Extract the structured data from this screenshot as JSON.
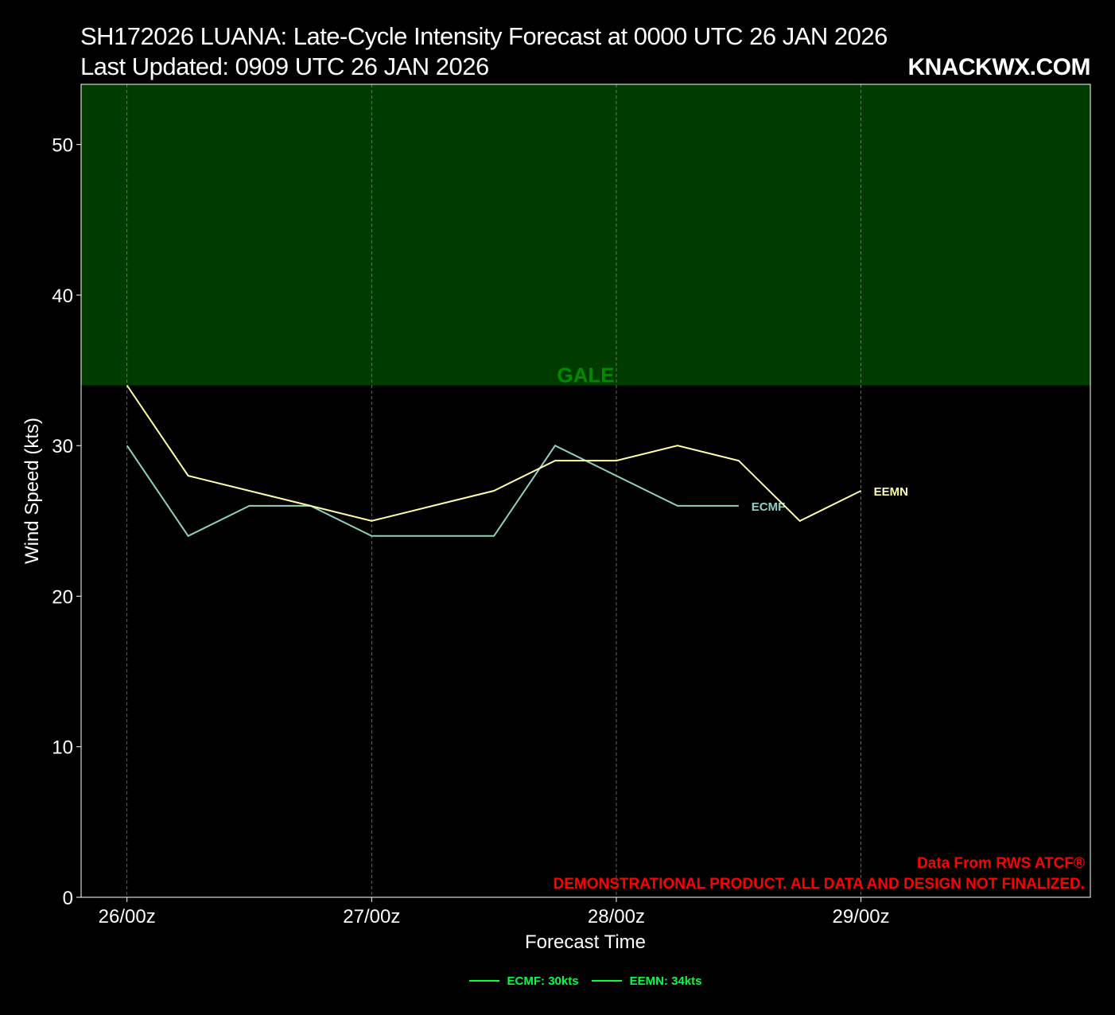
{
  "title": {
    "line1": "SH172026 LUANA: Late-Cycle Intensity Forecast at 0000 UTC 26 JAN 2026",
    "line2": "Last Updated: 0909 UTC 26 JAN 2026"
  },
  "brand": "KNACKWX.COM",
  "credits": {
    "source": "Data From RWS ATCF®",
    "disclaimer": "DEMONSTRATIONAL PRODUCT. ALL DATA AND DESIGN NOT FINALIZED."
  },
  "colors": {
    "background": "#000000",
    "gale_band": "#003b00",
    "gale_label": "#008a00",
    "ecmf": "#8fd1c4",
    "eemn": "#ffffa8",
    "credits": "#ff0000",
    "legend": "#00ff44",
    "grid": "#9a9a9a"
  },
  "legend": [
    {
      "label": "ECMF: 30kts"
    },
    {
      "label": "EEMN: 34kts"
    }
  ],
  "chart_data": {
    "type": "line",
    "xlabel": "Forecast Time",
    "ylabel": "Wind Speed (kts)",
    "x_unit": "hours from 26/00z",
    "xlim": [
      -4.5,
      94.5
    ],
    "ylim": [
      0,
      54
    ],
    "x_ticks": [
      {
        "x": 0,
        "label": "26/00z"
      },
      {
        "x": 24,
        "label": "27/00z"
      },
      {
        "x": 48,
        "label": "28/00z"
      },
      {
        "x": 72,
        "label": "29/00z"
      }
    ],
    "y_ticks": [
      0,
      10,
      20,
      30,
      40,
      50
    ],
    "grid": "vertical dashed at x ticks",
    "bands": [
      {
        "label": "GALE",
        "y_from": 34,
        "y_to": 54
      }
    ],
    "series": [
      {
        "name": "ECMF",
        "x": [
          0,
          6,
          12,
          18,
          24,
          30,
          36,
          42,
          48,
          54,
          60
        ],
        "values": [
          30,
          24,
          26,
          26,
          24,
          24,
          24,
          30,
          28,
          26,
          26
        ]
      },
      {
        "name": "EEMN",
        "x": [
          0,
          6,
          12,
          18,
          24,
          30,
          36,
          42,
          48,
          54,
          60,
          66,
          72
        ],
        "values": [
          34,
          28,
          27,
          26,
          25,
          26,
          27,
          29,
          29,
          30,
          29,
          25,
          27
        ]
      }
    ]
  }
}
